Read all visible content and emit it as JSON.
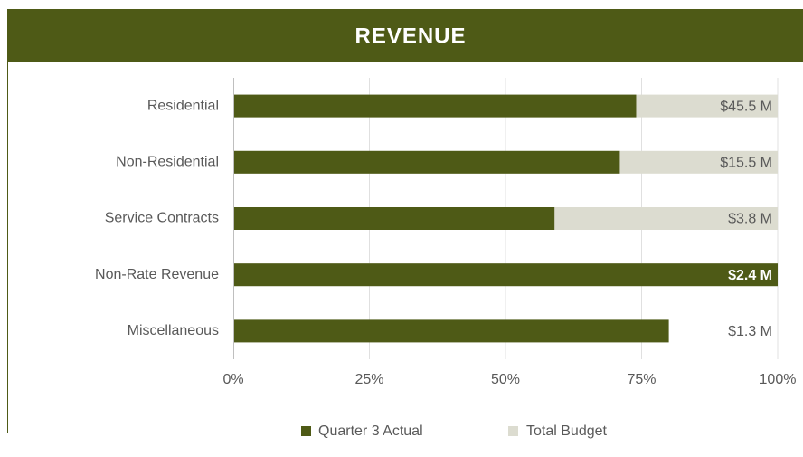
{
  "chart_data": {
    "type": "bar",
    "orientation": "horizontal",
    "title": "REVENUE",
    "categories": [
      "Residential",
      "Non-Residential",
      "Service Contracts",
      "Non-Rate Revenue",
      "Miscellaneous"
    ],
    "series": [
      {
        "name": "Quarter 3 Actual",
        "color": "#4e5a16",
        "values": [
          74,
          71,
          59,
          100,
          80
        ]
      },
      {
        "name": "Total Budget",
        "color": "#dcdcd0",
        "values": [
          100,
          100,
          100,
          100,
          null
        ]
      }
    ],
    "budget": {
      "values": [
        45.5,
        15.5,
        3.8,
        2.4,
        1.3
      ],
      "value_labels": [
        "$45.5 M",
        "$15.5 M",
        "$3.8 M",
        "$2.4 M",
        "$1.3 M"
      ]
    },
    "xlim": [
      0,
      100
    ],
    "xticks": [
      {
        "value": 0,
        "label": "0%"
      },
      {
        "value": 25,
        "label": "25%"
      },
      {
        "value": 50,
        "label": "50%"
      },
      {
        "value": 75,
        "label": "75%"
      },
      {
        "value": 100,
        "label": "100%"
      }
    ],
    "grid": true,
    "legend": "bottom"
  }
}
